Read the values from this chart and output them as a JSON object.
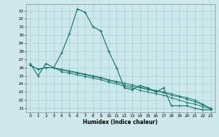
{
  "title": "",
  "xlabel": "Humidex (Indice chaleur)",
  "ylabel": "",
  "xlim": [
    -0.5,
    23.5
  ],
  "ylim": [
    20.5,
    33.8
  ],
  "xticks": [
    0,
    1,
    2,
    3,
    4,
    5,
    6,
    7,
    8,
    9,
    10,
    11,
    12,
    13,
    14,
    15,
    16,
    17,
    18,
    19,
    20,
    21,
    22,
    23
  ],
  "yticks": [
    21,
    22,
    23,
    24,
    25,
    26,
    27,
    28,
    29,
    30,
    31,
    32,
    33
  ],
  "bg_color": "#cce8ea",
  "grid_color": "#aacfd2",
  "line_color": "#1a7a6e",
  "lines": [
    {
      "x": [
        0,
        1,
        2,
        3,
        4,
        5,
        6,
        7,
        8,
        9,
        10,
        11,
        12,
        13,
        14,
        15,
        16,
        17,
        18,
        19,
        20,
        21,
        22,
        23
      ],
      "y": [
        26.5,
        25.0,
        26.5,
        26.0,
        27.8,
        30.2,
        33.2,
        32.8,
        31.0,
        30.5,
        28.0,
        26.0,
        23.5,
        23.3,
        23.8,
        23.5,
        23.0,
        23.5,
        21.3,
        21.3,
        21.3,
        21.0,
        20.8,
        20.8
      ]
    },
    {
      "x": [
        0,
        1,
        2,
        3,
        4,
        5,
        6,
        7,
        8,
        9,
        10,
        11,
        12,
        13,
        14,
        15,
        16,
        17,
        18,
        19,
        20,
        21,
        22,
        23
      ],
      "y": [
        26.3,
        25.8,
        26.0,
        26.0,
        25.8,
        25.6,
        25.4,
        25.2,
        25.0,
        24.8,
        24.5,
        24.3,
        24.1,
        23.9,
        23.6,
        23.4,
        23.2,
        23.0,
        22.8,
        22.5,
        22.3,
        22.0,
        21.5,
        21.0
      ]
    },
    {
      "x": [
        0,
        1,
        2,
        3,
        4,
        5,
        6,
        7,
        8,
        9,
        10,
        11,
        12,
        13,
        14,
        15,
        16,
        17,
        18,
        19,
        20,
        21,
        22,
        23
      ],
      "y": [
        26.3,
        25.8,
        26.0,
        26.0,
        25.7,
        25.5,
        25.3,
        25.1,
        24.9,
        24.7,
        24.4,
        24.2,
        23.9,
        23.7,
        23.5,
        23.3,
        23.1,
        22.9,
        22.6,
        22.4,
        22.1,
        21.8,
        21.4,
        21.0
      ]
    },
    {
      "x": [
        0,
        1,
        2,
        3,
        4,
        5,
        6,
        7,
        8,
        9,
        10,
        11,
        12,
        13,
        14,
        15,
        16,
        17,
        18,
        19,
        20,
        21,
        22,
        23
      ],
      "y": [
        26.3,
        25.8,
        26.0,
        26.0,
        25.5,
        25.3,
        25.1,
        24.9,
        24.7,
        24.5,
        24.2,
        24.0,
        23.7,
        23.5,
        23.2,
        23.0,
        22.8,
        22.6,
        22.3,
        22.0,
        21.7,
        21.5,
        21.2,
        20.9
      ]
    }
  ]
}
